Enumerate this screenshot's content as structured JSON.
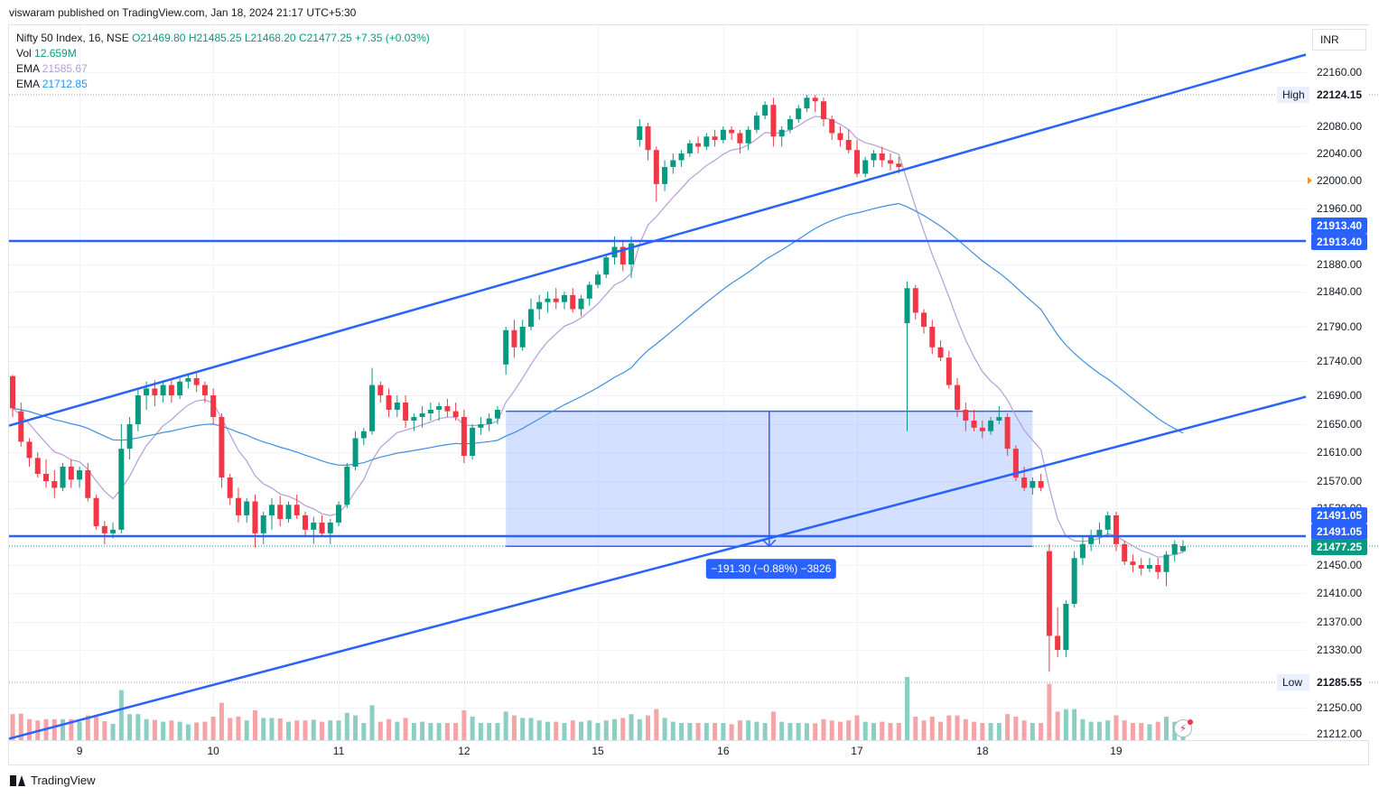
{
  "header": {
    "published_by": "viswaram published on TradingView.com, Jan 18, 2024 21:17 UTC+5:30"
  },
  "legend": {
    "symbol": "Nifty 50 Index, 16, NSE",
    "open": "O21469.80",
    "high": "H21485.25",
    "low": "L21468.20",
    "close": "C21477.25",
    "change": "+7.35 (+0.03%)",
    "vol_label": "Vol",
    "vol_value": "12.659M",
    "ema1_label": "EMA",
    "ema1_value": "21585.67",
    "ema2_label": "EMA",
    "ema2_value": "21712.85"
  },
  "colors": {
    "up": "#089981",
    "down": "#f23645",
    "up_volume": "#8ccfc2",
    "down_volume": "#f5a3a7",
    "trendline": "#2962ff",
    "ema_fast": "#b39ddb",
    "ema_slow": "#3f8fdf",
    "measure_fill": "#2962ff",
    "ema1_text": "#b39ddb",
    "ema2_text": "#2196f3"
  },
  "currency_label": "INR",
  "branding": "TradingView",
  "price_axis": {
    "ticks": [
      "22160.00",
      "22080.00",
      "22040.00",
      "22000.00",
      "21960.00",
      "21880.00",
      "21840.00",
      "21790.00",
      "21740.00",
      "21690.00",
      "21650.00",
      "21610.00",
      "21570.00",
      "21530.00",
      "21450.00",
      "21410.00",
      "21370.00",
      "21330.00",
      "21250.00",
      "21212.00"
    ],
    "high_label": "High",
    "high_value": "22124.15",
    "low_label": "Low",
    "low_value": "21285.55",
    "tag_resistance_1": "21913.40",
    "tag_resistance_2": "21913.40",
    "tag_support_1": "21491.05",
    "tag_support_2": "21491.05",
    "tag_last": "21477.25"
  },
  "time_axis": {
    "labels": [
      "9",
      "10",
      "11",
      "12",
      "15",
      "16",
      "17",
      "18",
      "19"
    ]
  },
  "measure": {
    "label": "−191.30 (−0.88%) −3826"
  },
  "chart_data": {
    "type": "candlestick",
    "symbol": "Nifty 50 Index",
    "interval": "16",
    "exchange": "NSE",
    "ylim": [
      21212,
      22190
    ],
    "x_categories": [
      "9",
      "10",
      "11",
      "12",
      "15",
      "16",
      "17",
      "18",
      "19"
    ],
    "horizontal_levels": [
      21913.4,
      21491.05
    ],
    "day_high": 22124.15,
    "day_low": 21285.55,
    "last_close": 21477.25,
    "trendlines": [
      {
        "from": {
          "bar": 0,
          "price": 21648
        },
        "to": {
          "bar": 148,
          "price": 22185
        }
      },
      {
        "from": {
          "bar": 0,
          "price": 21205
        },
        "to": {
          "bar": 148,
          "price": 21688
        }
      }
    ],
    "measure_range": {
      "from_bar": 59,
      "to_bar": 122,
      "top_price": 21668,
      "bottom_price": 21477,
      "change": -191.3,
      "change_pct": -0.88,
      "bars": -3826
    },
    "candles_ohlc": [
      [
        21718,
        21720,
        21660,
        21672
      ],
      [
        21668,
        21680,
        21618,
        21625
      ],
      [
        21625,
        21630,
        21590,
        21602
      ],
      [
        21602,
        21610,
        21575,
        21580
      ],
      [
        21580,
        21600,
        21560,
        21570
      ],
      [
        21570,
        21585,
        21545,
        21560
      ],
      [
        21560,
        21595,
        21555,
        21590
      ],
      [
        21590,
        21600,
        21560,
        21572
      ],
      [
        21572,
        21590,
        21560,
        21585
      ],
      [
        21585,
        21595,
        21540,
        21545
      ],
      [
        21545,
        21550,
        21500,
        21505
      ],
      [
        21505,
        21512,
        21480,
        21495
      ],
      [
        21495,
        21510,
        21488,
        21500
      ],
      [
        21500,
        21650,
        21495,
        21615
      ],
      [
        21615,
        21660,
        21600,
        21650
      ],
      [
        21650,
        21700,
        21640,
        21690
      ],
      [
        21690,
        21710,
        21670,
        21700
      ],
      [
        21700,
        21712,
        21675,
        21690
      ],
      [
        21690,
        21710,
        21680,
        21705
      ],
      [
        21705,
        21715,
        21680,
        21690
      ],
      [
        21690,
        21715,
        21685,
        21710
      ],
      [
        21710,
        21720,
        21700,
        21715
      ],
      [
        21715,
        21722,
        21695,
        21705
      ],
      [
        21705,
        21710,
        21680,
        21690
      ],
      [
        21690,
        21700,
        21650,
        21660
      ],
      [
        21660,
        21665,
        21560,
        21575
      ],
      [
        21575,
        21580,
        21535,
        21545
      ],
      [
        21545,
        21560,
        21510,
        21520
      ],
      [
        21520,
        21545,
        21510,
        21540
      ],
      [
        21540,
        21550,
        21475,
        21495
      ],
      [
        21495,
        21525,
        21480,
        21520
      ],
      [
        21520,
        21545,
        21500,
        21535
      ],
      [
        21535,
        21548,
        21505,
        21515
      ],
      [
        21515,
        21540,
        21510,
        21535
      ],
      [
        21535,
        21550,
        21515,
        21520
      ],
      [
        21520,
        21525,
        21490,
        21500
      ],
      [
        21500,
        21518,
        21480,
        21510
      ],
      [
        21510,
        21520,
        21490,
        21495
      ],
      [
        21495,
        21515,
        21480,
        21510
      ],
      [
        21510,
        21540,
        21505,
        21535
      ],
      [
        21535,
        21595,
        21530,
        21590
      ],
      [
        21590,
        21640,
        21585,
        21630
      ],
      [
        21630,
        21645,
        21620,
        21640
      ],
      [
        21640,
        21730,
        21635,
        21705
      ],
      [
        21705,
        21710,
        21680,
        21690
      ],
      [
        21690,
        21700,
        21660,
        21670
      ],
      [
        21670,
        21690,
        21660,
        21680
      ],
      [
        21680,
        21690,
        21645,
        21655
      ],
      [
        21655,
        21665,
        21640,
        21660
      ],
      [
        21660,
        21675,
        21645,
        21665
      ],
      [
        21665,
        21680,
        21655,
        21670
      ],
      [
        21670,
        21680,
        21655,
        21675
      ],
      [
        21675,
        21685,
        21660,
        21668
      ],
      [
        21668,
        21680,
        21655,
        21660
      ],
      [
        21660,
        21670,
        21595,
        21605
      ],
      [
        21605,
        21650,
        21600,
        21645
      ],
      [
        21645,
        21660,
        21635,
        21650
      ],
      [
        21650,
        21665,
        21640,
        21658
      ],
      [
        21658,
        21675,
        21650,
        21670
      ],
      [
        21735,
        21790,
        21720,
        21785
      ],
      [
        21785,
        21800,
        21745,
        21760
      ],
      [
        21760,
        21800,
        21755,
        21790
      ],
      [
        21790,
        21830,
        21785,
        21815
      ],
      [
        21815,
        21835,
        21800,
        21825
      ],
      [
        21825,
        21840,
        21810,
        21830
      ],
      [
        21830,
        21845,
        21815,
        21825
      ],
      [
        21825,
        21840,
        21815,
        21835
      ],
      [
        21835,
        21845,
        21810,
        21815
      ],
      [
        21815,
        21835,
        21805,
        21830
      ],
      [
        21830,
        21855,
        21820,
        21850
      ],
      [
        21850,
        21870,
        21845,
        21865
      ],
      [
        21865,
        21895,
        21860,
        21890
      ],
      [
        21890,
        21920,
        21880,
        21905
      ],
      [
        21905,
        21915,
        21870,
        21880
      ],
      [
        21880,
        21920,
        21860,
        21910
      ],
      [
        22060,
        22090,
        22050,
        22080
      ],
      [
        22080,
        22085,
        22030,
        22045
      ],
      [
        22045,
        22050,
        21970,
        21995
      ],
      [
        21995,
        22030,
        21985,
        22020
      ],
      [
        22020,
        22040,
        22010,
        22030
      ],
      [
        22030,
        22045,
        22020,
        22040
      ],
      [
        22040,
        22060,
        22035,
        22055
      ],
      [
        22055,
        22065,
        22040,
        22050
      ],
      [
        22050,
        22070,
        22045,
        22065
      ],
      [
        22065,
        22075,
        22050,
        22060
      ],
      [
        22060,
        22080,
        22055,
        22075
      ],
      [
        22075,
        22080,
        22060,
        22070
      ],
      [
        22070,
        22075,
        22040,
        22055
      ],
      [
        22055,
        22080,
        22045,
        22075
      ],
      [
        22075,
        22100,
        22070,
        22095
      ],
      [
        22095,
        22115,
        22090,
        22110
      ],
      [
        22110,
        22120,
        22050,
        22065
      ],
      [
        22065,
        22080,
        22050,
        22075
      ],
      [
        22075,
        22095,
        22070,
        22090
      ],
      [
        22090,
        22110,
        22085,
        22105
      ],
      [
        22105,
        22124,
        22100,
        22120
      ],
      [
        22120,
        22124,
        22100,
        22115
      ],
      [
        22115,
        22120,
        22080,
        22090
      ],
      [
        22090,
        22095,
        22060,
        22070
      ],
      [
        22070,
        22080,
        22050,
        22060
      ],
      [
        22060,
        22075,
        22040,
        22045
      ],
      [
        22045,
        22060,
        22005,
        22010
      ],
      [
        22010,
        22035,
        22005,
        22030
      ],
      [
        22030,
        22045,
        22020,
        22040
      ],
      [
        22040,
        22050,
        22020,
        22030
      ],
      [
        22030,
        22040,
        22015,
        22025
      ],
      [
        22025,
        22035,
        22010,
        22020
      ],
      [
        21795,
        21855,
        21640,
        21845
      ],
      [
        21845,
        21850,
        21800,
        21810
      ],
      [
        21810,
        21815,
        21780,
        21790
      ],
      [
        21790,
        21800,
        21750,
        21760
      ],
      [
        21760,
        21770,
        21740,
        21745
      ],
      [
        21745,
        21755,
        21700,
        21705
      ],
      [
        21705,
        21715,
        21660,
        21670
      ],
      [
        21670,
        21680,
        21640,
        21655
      ],
      [
        21655,
        21670,
        21640,
        21645
      ],
      [
        21645,
        21655,
        21630,
        21640
      ],
      [
        21640,
        21660,
        21635,
        21655
      ],
      [
        21655,
        21675,
        21650,
        21660
      ],
      [
        21660,
        21665,
        21605,
        21615
      ],
      [
        21615,
        21620,
        21570,
        21575
      ],
      [
        21575,
        21590,
        21555,
        21560
      ],
      [
        21560,
        21575,
        21550,
        21570
      ],
      [
        21570,
        21580,
        21555,
        21560
      ],
      [
        21470,
        21480,
        21300,
        21350
      ],
      [
        21350,
        21390,
        21320,
        21330
      ],
      [
        21330,
        21400,
        21320,
        21395
      ],
      [
        21395,
        21470,
        21390,
        21460
      ],
      [
        21460,
        21490,
        21450,
        21480
      ],
      [
        21480,
        21500,
        21470,
        21490
      ],
      [
        21490,
        21510,
        21480,
        21500
      ],
      [
        21500,
        21525,
        21490,
        21520
      ],
      [
        21520,
        21525,
        21470,
        21480
      ],
      [
        21480,
        21485,
        21450,
        21455
      ],
      [
        21455,
        21465,
        21440,
        21450
      ],
      [
        21450,
        21460,
        21435,
        21445
      ],
      [
        21445,
        21460,
        21440,
        21450
      ],
      [
        21450,
        21460,
        21430,
        21440
      ],
      [
        21440,
        21470,
        21420,
        21465
      ],
      [
        21465,
        21485,
        21455,
        21480
      ],
      [
        21469.8,
        21485.25,
        21468.2,
        21477.25
      ]
    ]
  }
}
